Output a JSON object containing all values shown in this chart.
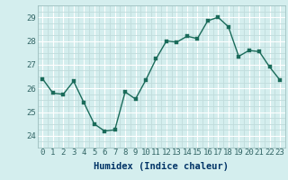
{
  "x": [
    0,
    1,
    2,
    3,
    4,
    5,
    6,
    7,
    8,
    9,
    10,
    11,
    12,
    13,
    14,
    15,
    16,
    17,
    18,
    19,
    20,
    21,
    22,
    23
  ],
  "y": [
    26.4,
    25.8,
    25.75,
    26.3,
    25.4,
    24.5,
    24.2,
    24.25,
    25.85,
    25.55,
    26.35,
    27.25,
    28.0,
    27.95,
    28.2,
    28.1,
    28.85,
    29.0,
    28.6,
    27.35,
    27.6,
    27.55,
    26.9,
    26.35
  ],
  "line_color": "#1a6b5a",
  "marker_color": "#1a6b5a",
  "bg_color": "#d4eeee",
  "grid_major_color": "#c0dcdc",
  "grid_white_color": "#ffffff",
  "xlabel": "Humidex (Indice chaleur)",
  "ylim": [
    23.5,
    29.5
  ],
  "xlim": [
    -0.5,
    23.5
  ],
  "yticks": [
    24,
    25,
    26,
    27,
    28,
    29
  ],
  "xticks": [
    0,
    1,
    2,
    3,
    4,
    5,
    6,
    7,
    8,
    9,
    10,
    11,
    12,
    13,
    14,
    15,
    16,
    17,
    18,
    19,
    20,
    21,
    22,
    23
  ],
  "xlabel_fontsize": 7.5,
  "tick_fontsize": 6.5,
  "linewidth": 1.0,
  "markersize": 2.5,
  "tick_color": "#336666",
  "label_color": "#003366"
}
